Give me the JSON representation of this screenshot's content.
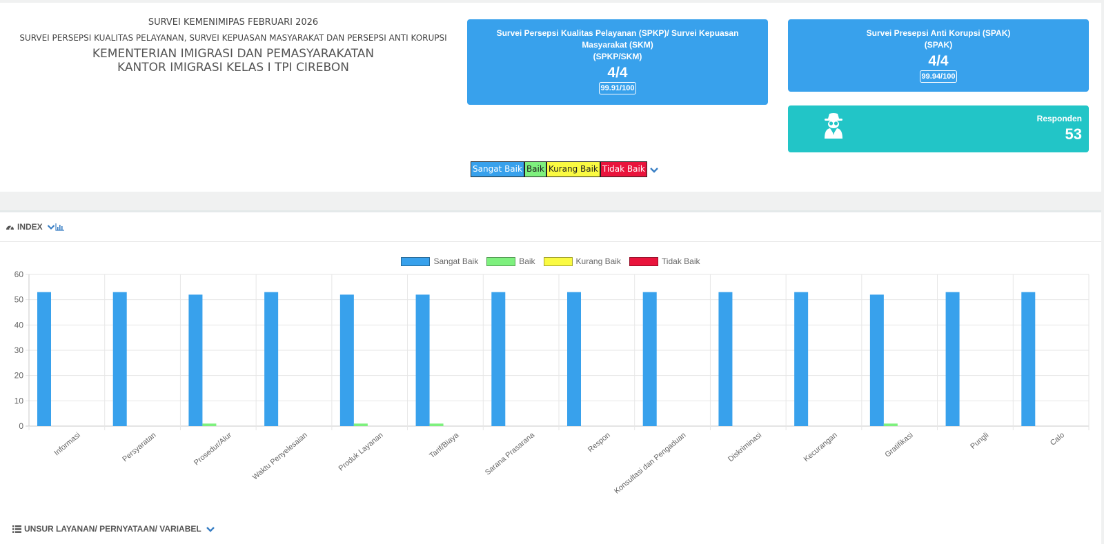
{
  "header": {
    "line1": "SURVEI KEMENIMIPAS FEBRUARI 2026",
    "line2": "SURVEI PERSEPSI KUALITAS PELAYANAN, SURVEI KEPUASAN MASYARAKAT DAN PERSEPSI ANTI KORUPSI",
    "line3": "KEMENTERIAN IMIGRASI DAN PEMASYARAKATAN",
    "line4": "KANTOR IMIGRASI KELAS I TPI CIREBON"
  },
  "cards": {
    "spkp": {
      "title": "Survei Persepsi Kualitas Pelayanan (SPKP)/ Survei Kepuasan Masyarakat (SKM)",
      "subtitle": "(SPKP/SKM)",
      "score": "4/4",
      "index": "99.91/100"
    },
    "spak": {
      "title": "Survei Presepsi Anti Korupsi (SPAK)",
      "subtitle": "(SPAK)",
      "score": "4/4",
      "index": "99.94/100"
    },
    "responden": {
      "label": "Responden",
      "value": "53",
      "icon": "spy-icon"
    }
  },
  "legend_filter": {
    "items": [
      "Sangat Baik",
      "Baik",
      "Kurang Baik",
      "Tidak Baik"
    ],
    "colors": [
      "#38a1ec",
      "#7ef07e",
      "#fafa42",
      "#e9143c"
    ]
  },
  "index_panel": {
    "title": "INDEX",
    "icons": [
      "dashboard-icon",
      "chevron-down-icon",
      "bar-chart-icon"
    ]
  },
  "chart_data": {
    "type": "bar",
    "categories": [
      "Informasi",
      "Persyaratan",
      "Prosedur/Alur",
      "Waktu Penyelesaian",
      "Produk Layanan",
      "Tarif/Biaya",
      "Sarana Prasarana",
      "Respon",
      "Konsultasi dan Pengaduan",
      "Diskriminasi",
      "Kecurangan",
      "Gratifikasi",
      "Pungli",
      "Calo"
    ],
    "series": [
      {
        "name": "Sangat Baik",
        "color": "#38a1ec",
        "values": [
          53,
          53,
          52,
          53,
          52,
          52,
          53,
          53,
          53,
          53,
          53,
          52,
          53,
          53
        ]
      },
      {
        "name": "Baik",
        "color": "#7ef07e",
        "values": [
          0,
          0,
          1,
          0,
          1,
          1,
          0,
          0,
          0,
          0,
          0,
          1,
          0,
          0
        ]
      },
      {
        "name": "Kurang Baik",
        "color": "#fafa42",
        "values": [
          0,
          0,
          0,
          0,
          0,
          0,
          0,
          0,
          0,
          0,
          0,
          0,
          0,
          0
        ]
      },
      {
        "name": "Tidak Baik",
        "color": "#e9143c",
        "values": [
          0,
          0,
          0,
          0,
          0,
          0,
          0,
          0,
          0,
          0,
          0,
          0,
          0,
          0
        ]
      }
    ],
    "ylim": [
      0,
      60
    ],
    "yticks": [
      0,
      10,
      20,
      30,
      40,
      50,
      60
    ],
    "grid": true,
    "legend": "top-center",
    "title": "",
    "xlabel": "",
    "ylabel": ""
  },
  "footer_panel": {
    "title": "UNSUR LAYANAN/ PERNYATAAN/ VARIABEL",
    "icons": [
      "list-icon",
      "chevron-down-icon"
    ]
  }
}
